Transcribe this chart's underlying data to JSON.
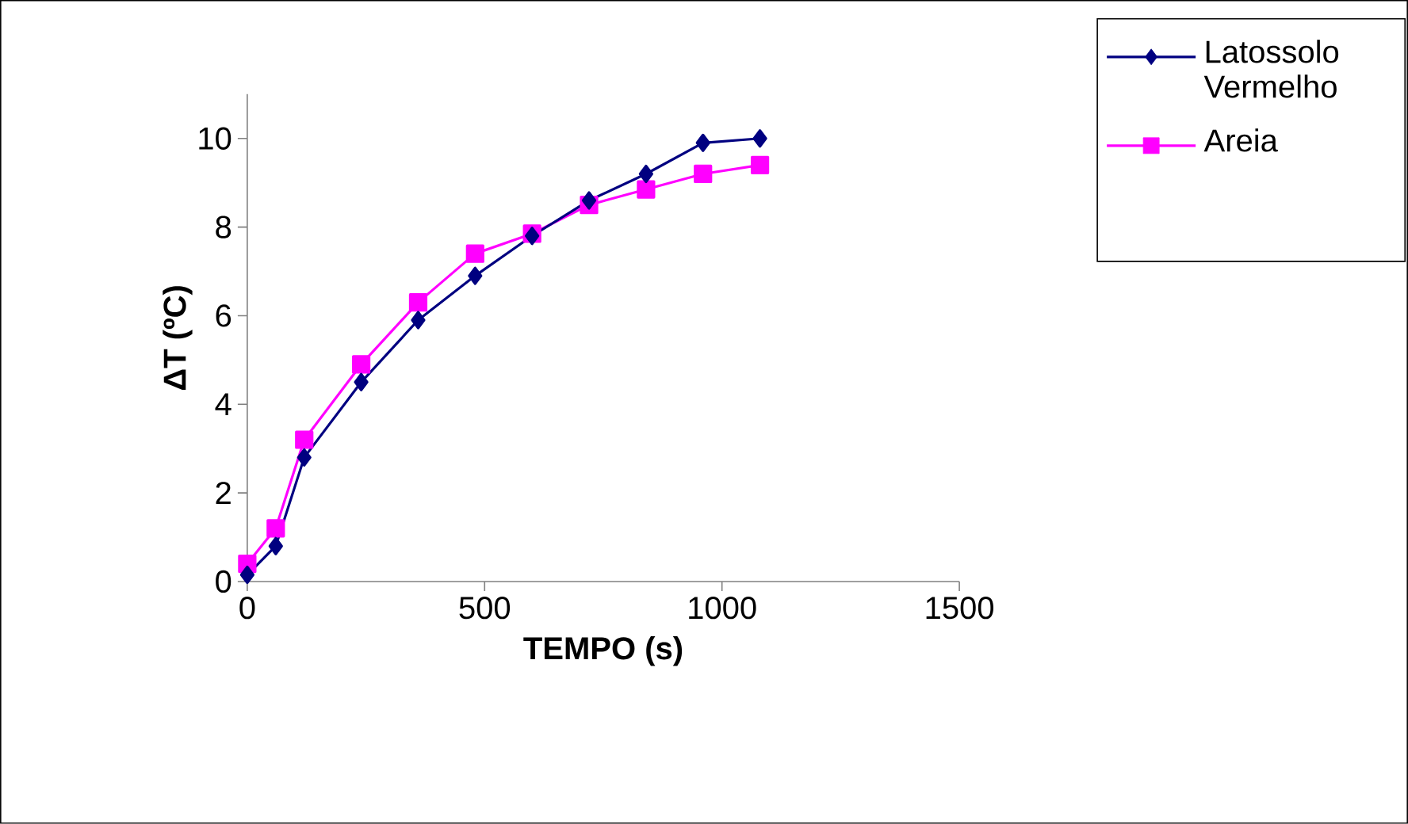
{
  "chart_data": {
    "type": "line",
    "xlabel": "TEMPO (s)",
    "ylabel": "ΔT  (ºC)",
    "x": [
      0,
      60,
      120,
      240,
      360,
      480,
      600,
      720,
      840,
      960,
      1080
    ],
    "series": [
      {
        "name": "Latossolo Vermelho",
        "color": "#000080",
        "marker": "diamond",
        "values": [
          0.15,
          0.8,
          2.8,
          4.5,
          5.9,
          6.9,
          7.8,
          8.6,
          9.2,
          9.9,
          10.0
        ]
      },
      {
        "name": "Areia",
        "color": "#ff00ff",
        "marker": "square",
        "values": [
          0.4,
          1.2,
          3.2,
          4.9,
          6.3,
          7.4,
          7.85,
          8.5,
          8.85,
          9.2,
          9.4
        ]
      }
    ],
    "xlim": [
      0,
      1500
    ],
    "xticks": [
      0,
      500,
      1000,
      1500
    ],
    "ylim": [
      0,
      11
    ],
    "yticks": [
      0,
      2,
      4,
      6,
      8,
      10
    ],
    "legend": "top right",
    "grid": false,
    "line_style": "solid"
  }
}
